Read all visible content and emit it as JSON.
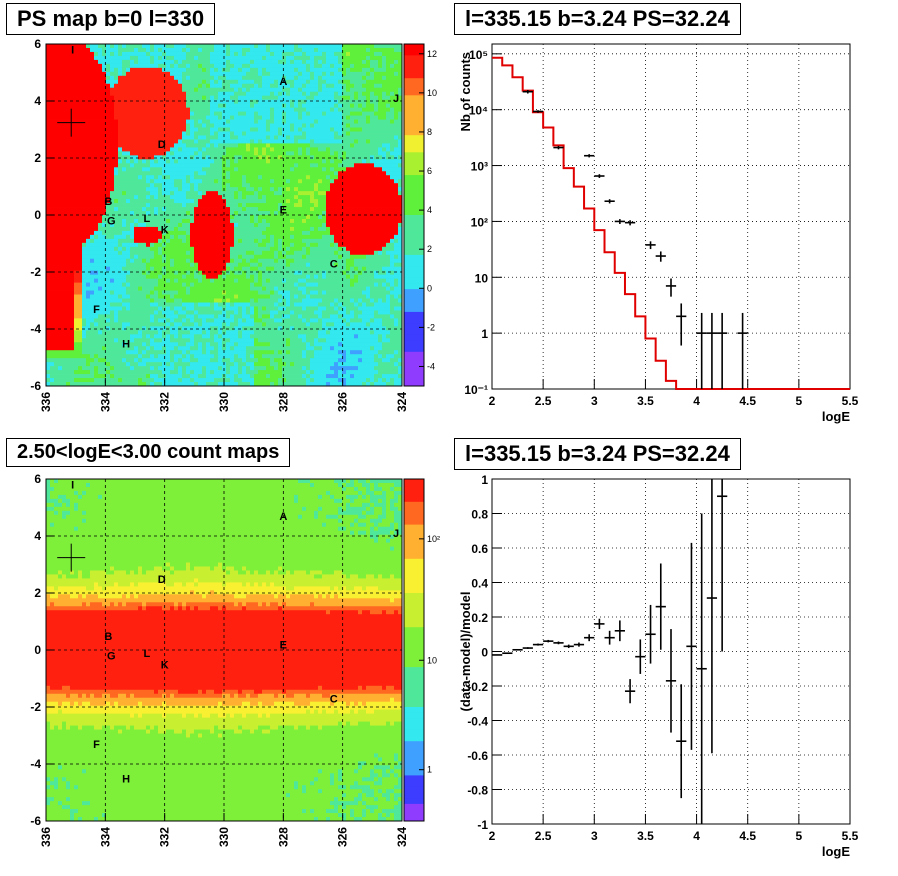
{
  "panels": {
    "tl": {
      "title": "PS map b=0 l=330"
    },
    "tr": {
      "title": "l=335.15 b=3.24 PS=32.24"
    },
    "bl": {
      "title": "2.50<logE<3.00 count maps"
    },
    "br": {
      "title": "l=335.15 b=3.24 PS=32.24"
    }
  },
  "maps": {
    "x_ticks": [
      "336",
      "334",
      "332",
      "330",
      "328",
      "326",
      "324"
    ],
    "y_ticks": [
      "6",
      "4",
      "2",
      "0",
      "-2",
      "-4",
      "-6"
    ],
    "sources": [
      {
        "label": "A",
        "l": 328.0,
        "b": 4.7
      },
      {
        "label": "B",
        "l": 333.9,
        "b": 0.5
      },
      {
        "label": "C",
        "l": 326.3,
        "b": -1.7
      },
      {
        "label": "D",
        "l": 332.1,
        "b": 2.5
      },
      {
        "label": "E",
        "l": 328.0,
        "b": 0.2
      },
      {
        "label": "F",
        "l": 334.3,
        "b": -3.3
      },
      {
        "label": "G",
        "l": 333.8,
        "b": -0.2
      },
      {
        "label": "H",
        "l": 333.3,
        "b": -4.5
      },
      {
        "label": "I",
        "l": 335.1,
        "b": 5.8
      },
      {
        "label": "J",
        "l": 324.2,
        "b": 4.1
      },
      {
        "label": "K",
        "l": 332.0,
        "b": -0.5
      },
      {
        "label": "L",
        "l": 332.6,
        "b": -0.1
      }
    ],
    "ps_colorbar_ticks": [
      "12",
      "10",
      "8",
      "6",
      "4",
      "2",
      "0",
      "-2",
      "-4"
    ],
    "count_colorbar_ticks": [
      "10²",
      "10",
      "1"
    ]
  },
  "chart_data": [
    {
      "type": "line",
      "title": "l=335.15 b=3.24 PS=32.24",
      "xlabel": "logE",
      "ylabel": "Nb of counts",
      "xlim": [
        2,
        5.5
      ],
      "ylim": [
        0.1,
        150000
      ],
      "yscale": "log",
      "grid": true,
      "x_ticks": [
        "2",
        "2.5",
        "3",
        "3.5",
        "4",
        "4.5",
        "5",
        "5.5"
      ],
      "y_ticks": [
        "10⁵",
        "10⁴",
        "10³",
        "10²",
        "10",
        "1",
        "10⁻¹"
      ],
      "model_step": {
        "edges": [
          2.0,
          2.1,
          2.2,
          2.3,
          2.4,
          2.5,
          2.6,
          2.7,
          2.8,
          2.9,
          3.0,
          3.1,
          3.2,
          3.3,
          3.4,
          3.5,
          3.6,
          3.7,
          3.8,
          3.9,
          4.0,
          4.1,
          4.2,
          4.3,
          4.4,
          4.5,
          4.6,
          4.7,
          4.8,
          4.9,
          5.0,
          5.1,
          5.2,
          5.3,
          5.4,
          5.5
        ],
        "values": [
          85000,
          62000,
          38000,
          22000,
          9000,
          4800,
          2300,
          900,
          420,
          170,
          70,
          28,
          12,
          5,
          2.0,
          0.8,
          0.32,
          0.14,
          0.1,
          0.1,
          0.1,
          0.1,
          0.1,
          0.1,
          0.1,
          0.1,
          0.1,
          0.1,
          0.1,
          0.1,
          0.1,
          0.1,
          0.1,
          0.1,
          0.1
        ]
      },
      "data_points": [
        {
          "x": 2.35,
          "y": 21000,
          "lo": 19500,
          "hi": 22500
        },
        {
          "x": 2.45,
          "y": 9300,
          "lo": 8800,
          "hi": 9800
        },
        {
          "x": 2.65,
          "y": 2100,
          "lo": 1950,
          "hi": 2250
        },
        {
          "x": 2.95,
          "y": 1500,
          "lo": 1400,
          "hi": 1600
        },
        {
          "x": 3.05,
          "y": 650,
          "lo": 600,
          "hi": 700
        },
        {
          "x": 3.15,
          "y": 230,
          "lo": 210,
          "hi": 250
        },
        {
          "x": 3.25,
          "y": 100,
          "lo": 90,
          "hi": 110
        },
        {
          "x": 3.35,
          "y": 95,
          "lo": 85,
          "hi": 105
        },
        {
          "x": 3.55,
          "y": 38,
          "lo": 32,
          "hi": 44
        },
        {
          "x": 3.65,
          "y": 24,
          "lo": 19,
          "hi": 29
        },
        {
          "x": 3.75,
          "y": 7,
          "lo": 4.5,
          "hi": 9.5
        },
        {
          "x": 3.85,
          "y": 2,
          "lo": 0.6,
          "hi": 3.4
        },
        {
          "x": 4.05,
          "y": 1,
          "lo": 0.1,
          "hi": 2.3
        },
        {
          "x": 4.15,
          "y": 1,
          "lo": 0.1,
          "hi": 2.3
        },
        {
          "x": 4.25,
          "y": 1,
          "lo": 0.1,
          "hi": 2.3
        },
        {
          "x": 4.45,
          "y": 1,
          "lo": 0.1,
          "hi": 2.3
        }
      ]
    },
    {
      "type": "scatter",
      "title": "l=335.15 b=3.24 PS=32.24",
      "xlabel": "logE",
      "ylabel": "(data-model)/model",
      "xlim": [
        2,
        5.5
      ],
      "ylim": [
        -1,
        1
      ],
      "grid": true,
      "x_ticks": [
        "2",
        "2.5",
        "3",
        "3.5",
        "4",
        "4.5",
        "5",
        "5.5"
      ],
      "y_ticks": [
        "1",
        "0.8",
        "0.6",
        "0.4",
        "0.2",
        "0",
        "-0.2",
        "-0.4",
        "-0.6",
        "-0.8",
        "-1"
      ],
      "points": [
        {
          "x": 2.05,
          "y": -0.02,
          "err": 0.003
        },
        {
          "x": 2.15,
          "y": -0.01,
          "err": 0.003
        },
        {
          "x": 2.25,
          "y": 0.01,
          "err": 0.004
        },
        {
          "x": 2.35,
          "y": 0.02,
          "err": 0.005
        },
        {
          "x": 2.45,
          "y": 0.04,
          "err": 0.006
        },
        {
          "x": 2.55,
          "y": 0.06,
          "err": 0.007
        },
        {
          "x": 2.65,
          "y": 0.05,
          "err": 0.008
        },
        {
          "x": 2.75,
          "y": 0.03,
          "err": 0.01
        },
        {
          "x": 2.85,
          "y": 0.04,
          "err": 0.012
        },
        {
          "x": 2.95,
          "y": 0.08,
          "err": 0.02
        },
        {
          "x": 3.05,
          "y": 0.16,
          "err": 0.03
        },
        {
          "x": 3.15,
          "y": 0.08,
          "err": 0.04
        },
        {
          "x": 3.25,
          "y": 0.12,
          "err": 0.06
        },
        {
          "x": 3.35,
          "y": -0.23,
          "err": 0.07
        },
        {
          "x": 3.45,
          "y": -0.03,
          "err": 0.1
        },
        {
          "x": 3.55,
          "y": 0.1,
          "err": 0.17
        },
        {
          "x": 3.65,
          "y": 0.26,
          "err": 0.25
        },
        {
          "x": 3.75,
          "y": -0.17,
          "err": 0.3
        },
        {
          "x": 3.85,
          "y": -0.52,
          "err": 0.33
        },
        {
          "x": 3.95,
          "y": 0.03,
          "err": 0.6
        },
        {
          "x": 4.05,
          "y": -0.1,
          "err": 0.9
        },
        {
          "x": 4.15,
          "y": 0.31,
          "err": 0.9
        },
        {
          "x": 4.25,
          "y": 0.9,
          "err": 0.9
        }
      ]
    }
  ]
}
